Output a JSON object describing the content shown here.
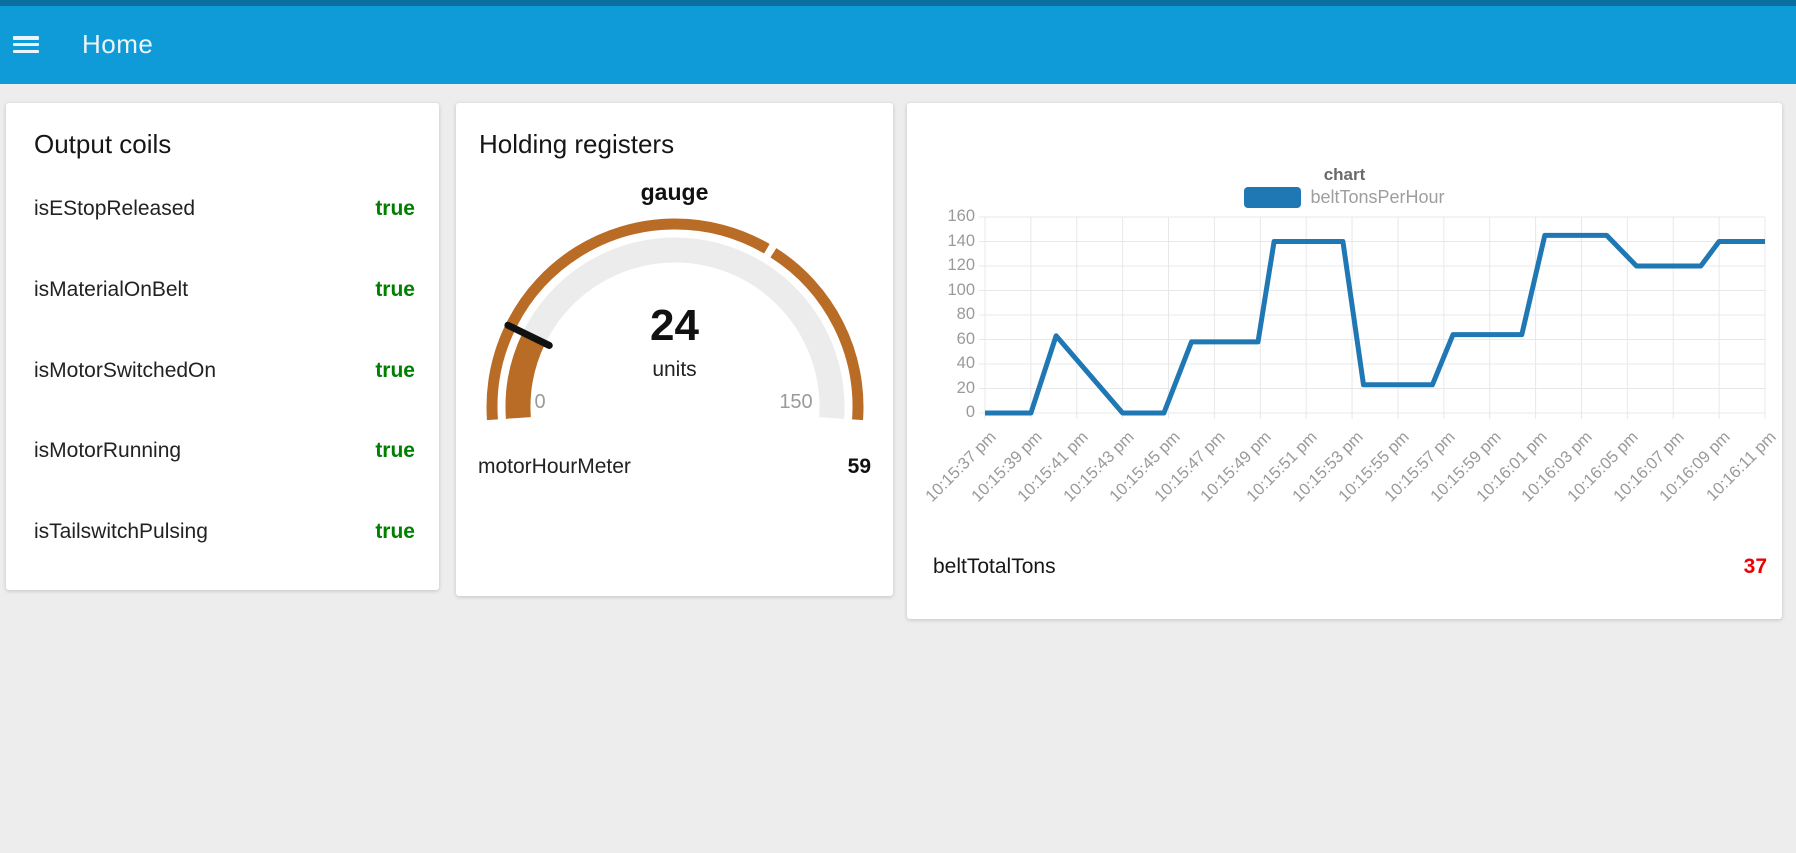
{
  "header": {
    "title": "Home"
  },
  "theme": {
    "header_color": "#0f9bd7",
    "header_strip_color": "#0a6f9f",
    "background_color": "#ededed",
    "true_color": "#008000",
    "alert_color": "#ee0000"
  },
  "cards": {
    "output_coils": {
      "title": "Output coils",
      "value_color": "#008000",
      "rows": [
        {
          "label": "isEStopReleased",
          "value": "true"
        },
        {
          "label": "isMaterialOnBelt",
          "value": "true"
        },
        {
          "label": "isMotorSwitchedOn",
          "value": "true"
        },
        {
          "label": "isMotorRunning",
          "value": "true"
        },
        {
          "label": "isTailswitchPulsing",
          "value": "true"
        }
      ]
    },
    "holding_registers": {
      "title": "Holding registers",
      "gauge": {
        "label": "gauge",
        "value": "24",
        "units": "units",
        "min": "0",
        "max": "150",
        "value_number": 24,
        "min_number": 0,
        "max_number": 150,
        "sector_mark_value": 100,
        "arc_color": "#b96c25",
        "track_color": "#ececec",
        "needle_color": "#111111"
      },
      "meter": {
        "label": "motorHourMeter",
        "value": "59"
      }
    },
    "chart_footer": {
      "label": "beltTotalTons",
      "value": "37",
      "value_color": "#ee0000"
    }
  },
  "chart_data": {
    "type": "line",
    "title": "chart",
    "legend_position": "top",
    "grid": true,
    "ylim": [
      0,
      160
    ],
    "y_ticks": [
      0,
      20,
      40,
      60,
      80,
      100,
      120,
      140,
      160
    ],
    "x_tick_labels": [
      "10:15:37 pm",
      "10:15:39 pm",
      "10:15:41 pm",
      "10:15:43 pm",
      "10:15:45 pm",
      "10:15:47 pm",
      "10:15:49 pm",
      "10:15:51 pm",
      "10:15:53 pm",
      "10:15:55 pm",
      "10:15:57 pm",
      "10:15:59 pm",
      "10:16:01 pm",
      "10:16:03 pm",
      "10:16:05 pm",
      "10:16:07 pm",
      "10:16:09 pm",
      "10:16:11 pm"
    ],
    "series": [
      {
        "name": "beltTonsPerHour",
        "color": "#1f77b4",
        "x_unit": "tick_index",
        "points": [
          {
            "x": 0,
            "y": 0
          },
          {
            "x": 1.0,
            "y": 0
          },
          {
            "x": 1.55,
            "y": 63
          },
          {
            "x": 3.0,
            "y": 0
          },
          {
            "x": 3.9,
            "y": 0
          },
          {
            "x": 4.5,
            "y": 58
          },
          {
            "x": 5.95,
            "y": 58
          },
          {
            "x": 6.3,
            "y": 140
          },
          {
            "x": 7.8,
            "y": 140
          },
          {
            "x": 8.25,
            "y": 23
          },
          {
            "x": 9.75,
            "y": 23
          },
          {
            "x": 10.2,
            "y": 64
          },
          {
            "x": 11.7,
            "y": 64
          },
          {
            "x": 12.2,
            "y": 145
          },
          {
            "x": 13.55,
            "y": 145
          },
          {
            "x": 14.2,
            "y": 120
          },
          {
            "x": 15.6,
            "y": 120
          },
          {
            "x": 16.0,
            "y": 140
          },
          {
            "x": 17.0,
            "y": 140
          }
        ]
      }
    ]
  }
}
